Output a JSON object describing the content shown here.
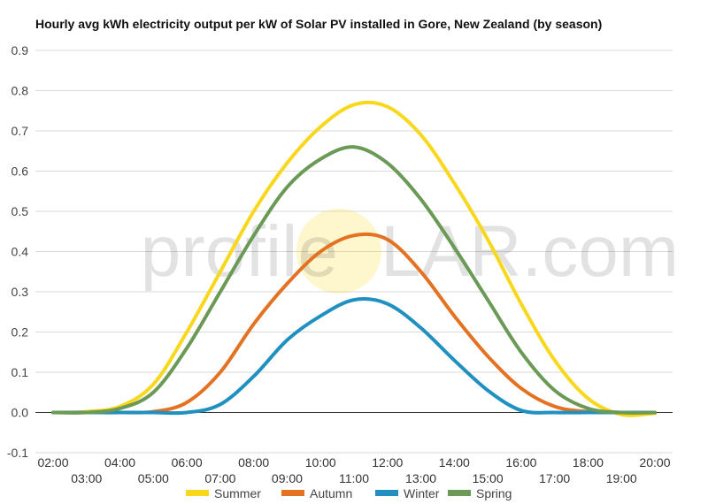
{
  "chart_data": {
    "type": "line",
    "title": "Hourly avg kWh electricity output per kW of Solar PV installed in Gore, New Zealand (by season)",
    "xlabel": "",
    "ylabel": "",
    "ylim": [
      -0.1,
      0.9
    ],
    "yticks": [
      "-0.1",
      "0.0",
      "0.1",
      "0.2",
      "0.3",
      "0.4",
      "0.5",
      "0.6",
      "0.7",
      "0.8",
      "0.9"
    ],
    "x": [
      "02:00",
      "03:00",
      "04:00",
      "05:00",
      "06:00",
      "07:00",
      "08:00",
      "09:00",
      "10:00",
      "11:00",
      "12:00",
      "13:00",
      "14:00",
      "15:00",
      "16:00",
      "17:00",
      "18:00",
      "19:00",
      "20:00"
    ],
    "grid": true,
    "legend": "bottom",
    "watermark": {
      "left": "profile",
      "right": "LAR.com"
    },
    "series": [
      {
        "name": "Summer",
        "color": "#f9d71c",
        "values": [
          0.0,
          0.002,
          0.015,
          0.07,
          0.2,
          0.35,
          0.5,
          0.62,
          0.71,
          0.765,
          0.76,
          0.69,
          0.57,
          0.43,
          0.27,
          0.13,
          0.035,
          -0.005,
          -0.002
        ]
      },
      {
        "name": "Autumn",
        "color": "#e37222",
        "values": [
          0.0,
          0.0,
          0.0,
          0.002,
          0.025,
          0.1,
          0.22,
          0.32,
          0.4,
          0.44,
          0.43,
          0.35,
          0.24,
          0.14,
          0.06,
          0.015,
          0.002,
          0.0,
          0.0
        ]
      },
      {
        "name": "Winter",
        "color": "#1f90bf",
        "values": [
          0.0,
          0.0,
          0.0,
          0.0,
          0.0,
          0.02,
          0.09,
          0.18,
          0.24,
          0.28,
          0.27,
          0.21,
          0.13,
          0.055,
          0.005,
          0.0,
          0.0,
          0.0,
          0.0
        ]
      },
      {
        "name": "Spring",
        "color": "#6a9a55",
        "values": [
          0.0,
          0.0,
          0.01,
          0.05,
          0.16,
          0.3,
          0.44,
          0.56,
          0.63,
          0.66,
          0.62,
          0.53,
          0.41,
          0.28,
          0.15,
          0.055,
          0.01,
          0.0,
          0.0
        ]
      }
    ]
  }
}
